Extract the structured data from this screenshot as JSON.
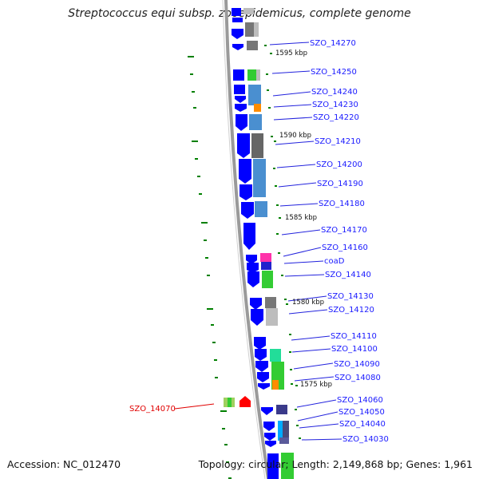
{
  "title": "Streptococcus equi subsp. zooepidemicus, complete genome",
  "footer": {
    "accession": "Accession: NC_012470",
    "summary": "Topology: circular; Length: 2,149,868 bp; Genes: 1,961"
  },
  "colors": {
    "backbone": "#8a8a8a",
    "gene_forward": "#0000ff",
    "label": "#1a1aff",
    "highlight": "#e00000",
    "tick": "#008000"
  },
  "kbp_markers": [
    "1595 kbp",
    "1590 kbp",
    "1585 kbp",
    "1580 kbp",
    "1575 kbp"
  ],
  "gene_labels": [
    "SZO_14270",
    "SZO_14250",
    "SZO_14240",
    "SZO_14230",
    "SZO_14220",
    "SZO_14210",
    "SZO_14200",
    "SZO_14190",
    "SZO_14180",
    "SZO_14170",
    "SZO_14160",
    "coaD",
    "SZO_14140",
    "SZO_14130",
    "SZO_14120",
    "SZO_14110",
    "SZO_14100",
    "SZO_14090",
    "SZO_14080",
    "SZO_14060",
    "SZO_14050",
    "SZO_14040",
    "SZO_14030"
  ],
  "highlight_label": "SZO_14070"
}
